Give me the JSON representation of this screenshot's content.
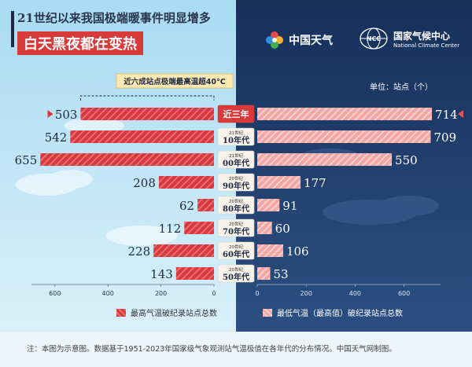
{
  "header": {
    "title_line1": "21世纪以来我国极端暖事件明显增多",
    "title_line2": "白天黑夜都在变热"
  },
  "logos": {
    "cma_tv": "中国天气",
    "ncc_cn": "国家气候中心",
    "ncc_en": "National Climate Center",
    "ncc_badge": "NCC"
  },
  "annotation": "近六成站点极端最高温超40°C",
  "unit_label": "单位：站点（个）",
  "footnote": "注：本图为示意图。数据基于1951-2023年国家级气象观测站气温极值在各年代的分布情况。中国天气网制图。",
  "colors": {
    "left_bar": "#d8383f",
    "right_bar": "#f3a6a3",
    "highlight": "#d83a3a",
    "sky_left": "#bfe4f6",
    "sky_right": "#1f3e6c"
  },
  "chart_data": {
    "type": "bar",
    "orientation": "horizontal",
    "categories": [
      {
        "sup": "",
        "main": "近三年"
      },
      {
        "sup": "21世纪",
        "main": "10年代"
      },
      {
        "sup": "21世纪",
        "main": "00年代"
      },
      {
        "sup": "20世纪",
        "main": "90年代"
      },
      {
        "sup": "20世纪",
        "main": "80年代"
      },
      {
        "sup": "20世纪",
        "main": "70年代"
      },
      {
        "sup": "20世纪",
        "main": "60年代"
      },
      {
        "sup": "20世纪",
        "main": "50年代"
      }
    ],
    "series": [
      {
        "name": "最高气温破纪录站点总数",
        "side": "left",
        "values": [
          503,
          542,
          655,
          208,
          62,
          112,
          228,
          143
        ]
      },
      {
        "name": "最低气温（最高值）破纪录站点总数",
        "side": "right",
        "values": [
          714,
          709,
          550,
          177,
          91,
          60,
          106,
          53
        ]
      }
    ],
    "left_axis": {
      "ticks": [
        "600",
        "400",
        "200",
        "0"
      ],
      "tick_values": [
        600,
        400,
        200,
        0
      ],
      "range": [
        0,
        680
      ]
    },
    "right_axis": {
      "ticks": [
        "0",
        "200",
        "400",
        "600"
      ],
      "tick_values": [
        0,
        200,
        400,
        600
      ],
      "range": [
        0,
        770
      ]
    }
  }
}
